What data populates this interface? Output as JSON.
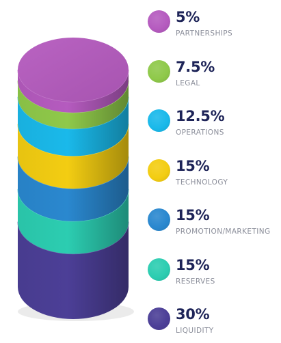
{
  "chart_data": {
    "type": "stacked-cylinder",
    "unit": "%",
    "segments": [
      {
        "label": "PARTNERSHIPS",
        "value": 5,
        "value_label": "5%",
        "color": "#b55bbf"
      },
      {
        "label": "LEGAL",
        "value": 7.5,
        "value_label": "7.5%",
        "color": "#8fc94a"
      },
      {
        "label": "OPERATIONS",
        "value": 12.5,
        "value_label": "12.5%",
        "color": "#1ab9ea"
      },
      {
        "label": "TECHNOLOGY",
        "value": 15,
        "value_label": "15%",
        "color": "#f3cd12"
      },
      {
        "label": "PROMOTION/MARKETING",
        "value": 15,
        "value_label": "15%",
        "color": "#2a88cf"
      },
      {
        "label": "RESERVES",
        "value": 15,
        "value_label": "15%",
        "color": "#2ccdb1"
      },
      {
        "label": "LIQUIDITY",
        "value": 30,
        "value_label": "30%",
        "color": "#4c3f97"
      }
    ]
  }
}
